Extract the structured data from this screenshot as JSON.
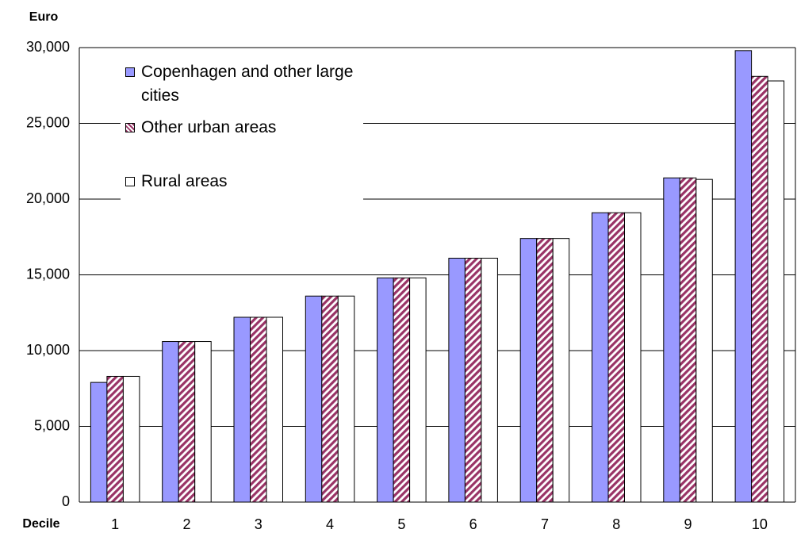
{
  "chart_data": {
    "type": "bar",
    "y_label": "Euro",
    "x_label": "Decile",
    "categories": [
      "1",
      "2",
      "3",
      "4",
      "5",
      "6",
      "7",
      "8",
      "9",
      "10"
    ],
    "series": [
      {
        "name": "Copenhagen and other large cities",
        "color": "#9999ff",
        "values": [
          7900,
          10600,
          12200,
          13600,
          14800,
          16100,
          17400,
          19100,
          21400,
          29800
        ]
      },
      {
        "name": "Other urban areas",
        "color": "#993366",
        "pattern": "diagonal-stripes",
        "values": [
          8300,
          10600,
          12200,
          13600,
          14800,
          16100,
          17400,
          19100,
          21400,
          28100
        ]
      },
      {
        "name": "Rural areas",
        "color": "#ffffff",
        "values": [
          8300,
          10600,
          12200,
          13600,
          14800,
          16100,
          17400,
          19100,
          21300,
          27800
        ]
      }
    ],
    "ylim": [
      0,
      30000
    ],
    "yticks": [
      0,
      {
        "value": 5000,
        "label": "5,000"
      },
      {
        "value": 10000,
        "label": "10,000"
      },
      {
        "value": 15000,
        "label": "15,000"
      },
      {
        "value": 20000,
        "label": "20,000"
      },
      {
        "value": 25000,
        "label": "25,000"
      },
      {
        "value": 30000,
        "label": "30,000"
      }
    ],
    "grid": true
  }
}
